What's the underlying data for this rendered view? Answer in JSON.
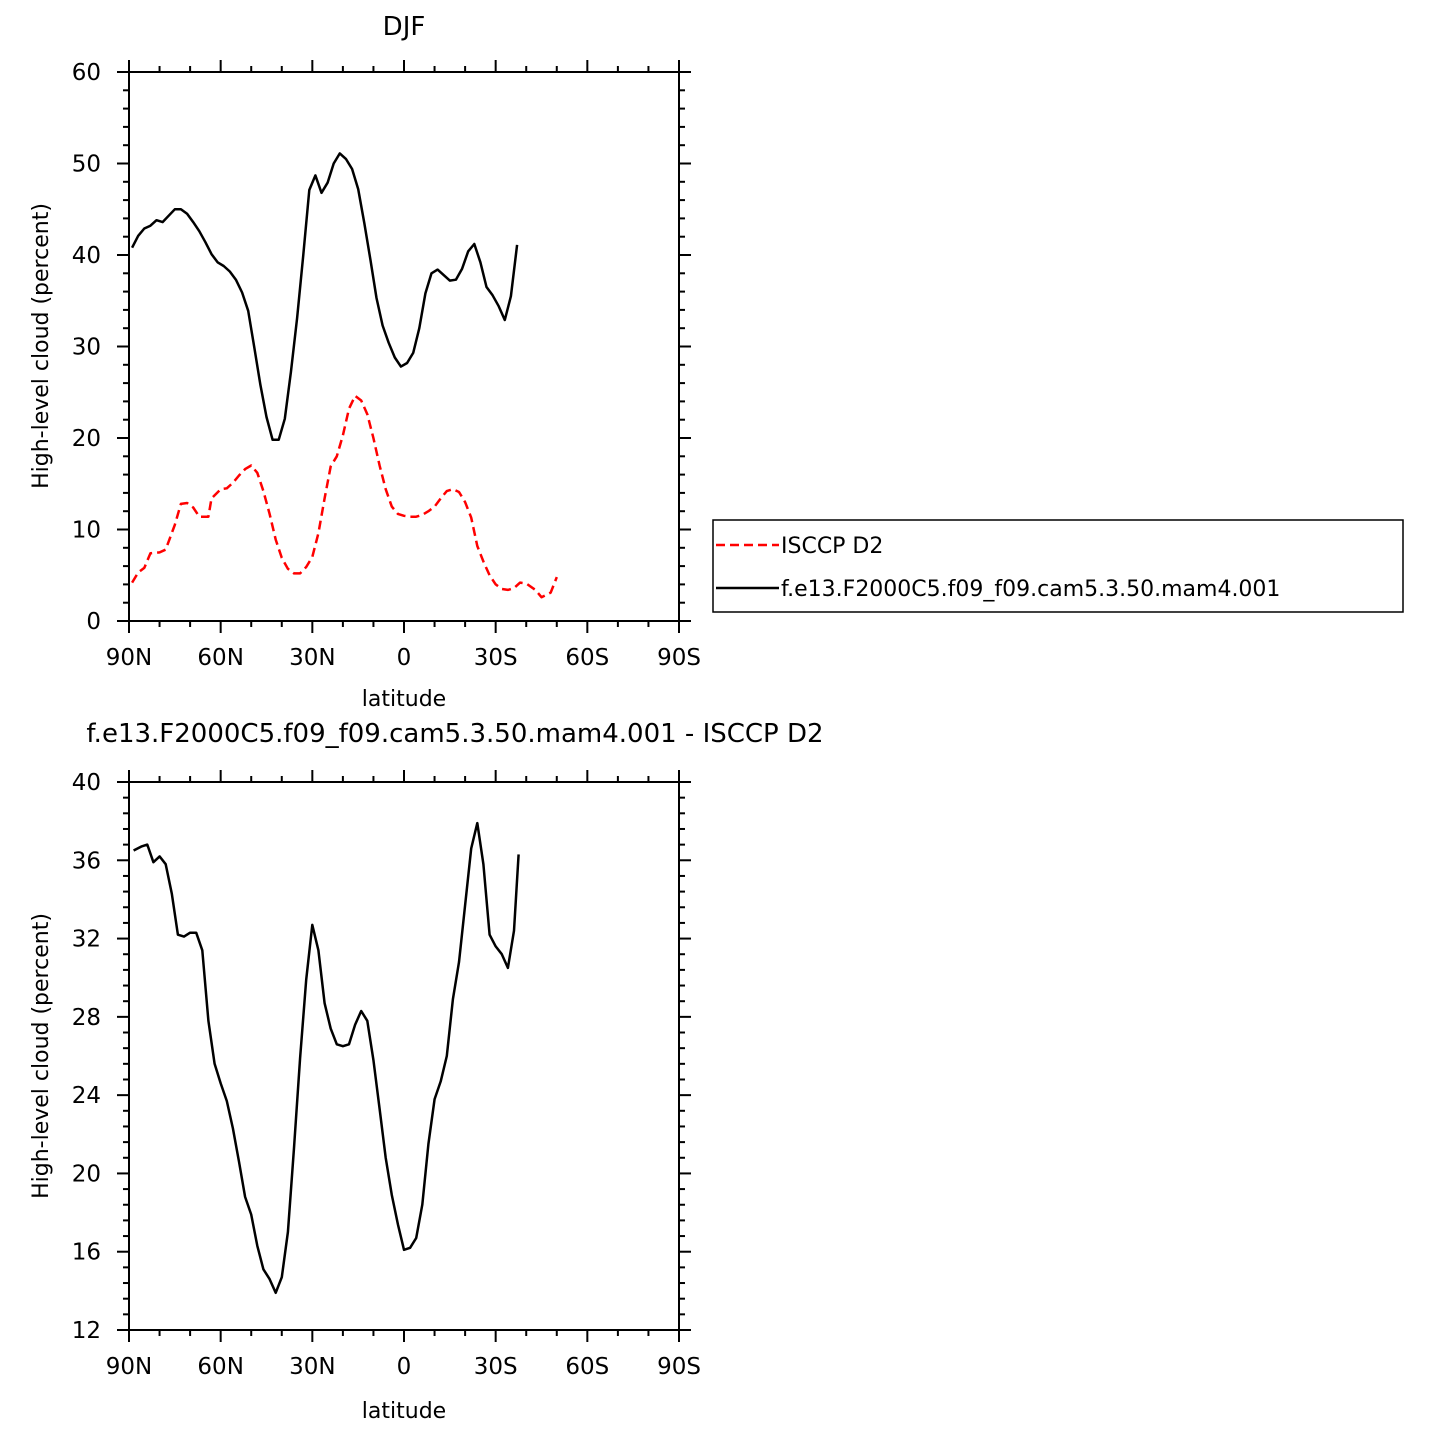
{
  "chart_data": [
    {
      "type": "line",
      "title": "DJF",
      "xlabel": "latitude",
      "ylabel": "High-level cloud (percent)",
      "xlim": [
        90,
        -90
      ],
      "ylim": [
        0,
        60
      ],
      "x_ticks": [
        90,
        60,
        30,
        0,
        -30,
        -60,
        -90
      ],
      "x_tick_labels": [
        "90N",
        "60N",
        "30N",
        "0",
        "30S",
        "60S",
        "90S"
      ],
      "y_ticks": [
        0,
        10,
        20,
        30,
        40,
        50,
        60
      ],
      "y_tick_labels": [
        "0",
        "10",
        "20",
        "30",
        "40",
        "50",
        "60"
      ],
      "legend_position": "right",
      "series": [
        {
          "name": "ISCCP D2",
          "color": "#ff0000",
          "dash": "dashed",
          "points": [
            [
              89,
              4.2
            ],
            [
              87,
              5.3
            ],
            [
              85,
              5.8
            ],
            [
              83,
              7.4
            ],
            [
              80,
              7.5
            ],
            [
              78,
              7.8
            ],
            [
              75,
              10.5
            ],
            [
              73,
              12.8
            ],
            [
              71,
              12.9
            ],
            [
              69,
              12.4
            ],
            [
              67,
              11.4
            ],
            [
              64,
              11.4
            ],
            [
              63,
              13.4
            ],
            [
              60,
              14.4
            ],
            [
              58,
              14.5
            ],
            [
              56,
              15.1
            ],
            [
              54,
              15.9
            ],
            [
              52,
              16.6
            ],
            [
              50,
              17.0
            ],
            [
              48,
              16.2
            ],
            [
              46,
              14.2
            ],
            [
              44,
              11.7
            ],
            [
              42,
              8.9
            ],
            [
              40,
              6.9
            ],
            [
              38,
              5.7
            ],
            [
              36,
              5.2
            ],
            [
              34,
              5.2
            ],
            [
              32,
              5.9
            ],
            [
              30,
              7.0
            ],
            [
              28,
              9.6
            ],
            [
              26,
              13.4
            ],
            [
              24,
              16.9
            ],
            [
              22,
              18.0
            ],
            [
              20,
              20.3
            ],
            [
              18,
              23.2
            ],
            [
              16,
              24.6
            ],
            [
              14,
              24.1
            ],
            [
              12,
              22.6
            ],
            [
              10,
              20.0
            ],
            [
              8,
              17.0
            ],
            [
              6,
              14.4
            ],
            [
              4,
              12.5
            ],
            [
              2,
              11.7
            ],
            [
              0,
              11.5
            ],
            [
              -2,
              11.4
            ],
            [
              -4,
              11.4
            ],
            [
              -6,
              11.6
            ],
            [
              -8,
              12.0
            ],
            [
              -10,
              12.5
            ],
            [
              -12,
              13.4
            ],
            [
              -14,
              14.2
            ],
            [
              -16,
              14.4
            ],
            [
              -18,
              14.1
            ],
            [
              -20,
              13.0
            ],
            [
              -22,
              11.3
            ],
            [
              -24,
              8.2
            ],
            [
              -26,
              6.5
            ],
            [
              -28,
              5.0
            ],
            [
              -30,
              4.0
            ],
            [
              -32,
              3.5
            ],
            [
              -34,
              3.4
            ],
            [
              -36,
              3.6
            ],
            [
              -38,
              4.2
            ],
            [
              -40,
              4.1
            ],
            [
              -43,
              3.4
            ],
            [
              -45,
              2.6
            ],
            [
              -48,
              3.1
            ],
            [
              -50,
              4.8
            ]
          ]
        },
        {
          "name": "f.e13.F2000C5.f09_f09.cam5.3.50.mam4.001",
          "color": "#000000",
          "dash": "solid",
          "points": [
            [
              89,
              40.8
            ],
            [
              87,
              42.1
            ],
            [
              85,
              42.9
            ],
            [
              83,
              43.2
            ],
            [
              81,
              43.8
            ],
            [
              79,
              43.6
            ],
            [
              77,
              44.3
            ],
            [
              75,
              45.0
            ],
            [
              73,
              45.0
            ],
            [
              71,
              44.5
            ],
            [
              69,
              43.6
            ],
            [
              67,
              42.6
            ],
            [
              65,
              41.4
            ],
            [
              63,
              40.1
            ],
            [
              61,
              39.2
            ],
            [
              59,
              38.8
            ],
            [
              57,
              38.2
            ],
            [
              55,
              37.3
            ],
            [
              53,
              35.9
            ],
            [
              51,
              33.9
            ],
            [
              49,
              29.9
            ],
            [
              47,
              25.8
            ],
            [
              45,
              22.3
            ],
            [
              43,
              19.8
            ],
            [
              41,
              19.8
            ],
            [
              39,
              22.1
            ],
            [
              37,
              27.2
            ],
            [
              35,
              33.1
            ],
            [
              33,
              39.9
            ],
            [
              31,
              47.1
            ],
            [
              29,
              48.7
            ],
            [
              27,
              46.8
            ],
            [
              25,
              47.9
            ],
            [
              23,
              50.0
            ],
            [
              21,
              51.1
            ],
            [
              19,
              50.5
            ],
            [
              17,
              49.4
            ],
            [
              15,
              47.2
            ],
            [
              13,
              43.5
            ],
            [
              11,
              39.5
            ],
            [
              9,
              35.3
            ],
            [
              7,
              32.3
            ],
            [
              5,
              30.4
            ],
            [
              3,
              28.8
            ],
            [
              1,
              27.8
            ],
            [
              -1,
              28.2
            ],
            [
              -3,
              29.3
            ],
            [
              -5,
              32.0
            ],
            [
              -7,
              35.8
            ],
            [
              -9,
              38.0
            ],
            [
              -11,
              38.4
            ],
            [
              -13,
              37.8
            ],
            [
              -15,
              37.2
            ],
            [
              -17,
              37.3
            ],
            [
              -19,
              38.5
            ],
            [
              -21,
              40.4
            ],
            [
              -23,
              41.2
            ],
            [
              -25,
              39.2
            ],
            [
              -27,
              36.5
            ],
            [
              -29,
              35.6
            ],
            [
              -31,
              34.4
            ],
            [
              -33,
              32.9
            ],
            [
              -35,
              35.5
            ],
            [
              -37,
              41.1
            ]
          ]
        }
      ]
    },
    {
      "type": "line",
      "title": "f.e13.F2000C5.f09_f09.cam5.3.50.mam4.001  -  ISCCP D2",
      "xlabel": "latitude",
      "ylabel": "High-level cloud (percent)",
      "xlim": [
        90,
        -90
      ],
      "ylim": [
        12,
        40
      ],
      "x_ticks": [
        90,
        60,
        30,
        0,
        -30,
        -60,
        -90
      ],
      "x_tick_labels": [
        "90N",
        "60N",
        "30N",
        "0",
        "30S",
        "60S",
        "90S"
      ],
      "y_ticks": [
        12,
        16,
        20,
        24,
        28,
        32,
        36,
        40
      ],
      "y_tick_labels": [
        "12",
        "16",
        "20",
        "24",
        "28",
        "32",
        "36",
        "40"
      ],
      "series": [
        {
          "color": "#000000",
          "dash": "solid",
          "points": [
            [
              88.5,
              36.5
            ],
            [
              86,
              36.7
            ],
            [
              84,
              36.8
            ],
            [
              82,
              35.9
            ],
            [
              80,
              36.2
            ],
            [
              78,
              35.8
            ],
            [
              76,
              34.3
            ],
            [
              74,
              32.2
            ],
            [
              72,
              32.1
            ],
            [
              70,
              32.3
            ],
            [
              68,
              32.3
            ],
            [
              66,
              31.4
            ],
            [
              64,
              27.8
            ],
            [
              62,
              25.6
            ],
            [
              60,
              24.6
            ],
            [
              58,
              23.7
            ],
            [
              56,
              22.3
            ],
            [
              54,
              20.6
            ],
            [
              52,
              18.8
            ],
            [
              50,
              17.9
            ],
            [
              48,
              16.3
            ],
            [
              46,
              15.1
            ],
            [
              44,
              14.6
            ],
            [
              42,
              13.9
            ],
            [
              40,
              14.7
            ],
            [
              38,
              17.0
            ],
            [
              36,
              21.3
            ],
            [
              34,
              25.9
            ],
            [
              32,
              29.9
            ],
            [
              30,
              32.7
            ],
            [
              28,
              31.4
            ],
            [
              26,
              28.7
            ],
            [
              24,
              27.4
            ],
            [
              22,
              26.6
            ],
            [
              20,
              26.5
            ],
            [
              18,
              26.6
            ],
            [
              16,
              27.6
            ],
            [
              14,
              28.3
            ],
            [
              12,
              27.8
            ],
            [
              10,
              25.8
            ],
            [
              8,
              23.3
            ],
            [
              6,
              20.8
            ],
            [
              4,
              18.9
            ],
            [
              2,
              17.4
            ],
            [
              0,
              16.1
            ],
            [
              -2,
              16.2
            ],
            [
              -4,
              16.7
            ],
            [
              -6,
              18.4
            ],
            [
              -8,
              21.5
            ],
            [
              -10,
              23.8
            ],
            [
              -12,
              24.7
            ],
            [
              -14,
              26.0
            ],
            [
              -16,
              28.9
            ],
            [
              -18,
              30.8
            ],
            [
              -20,
              33.7
            ],
            [
              -22,
              36.6
            ],
            [
              -24,
              37.9
            ],
            [
              -26,
              35.8
            ],
            [
              -28,
              32.2
            ],
            [
              -30,
              31.6
            ],
            [
              -32,
              31.2
            ],
            [
              -34,
              30.5
            ],
            [
              -36,
              32.4
            ],
            [
              -37.5,
              36.3
            ]
          ]
        }
      ]
    }
  ]
}
